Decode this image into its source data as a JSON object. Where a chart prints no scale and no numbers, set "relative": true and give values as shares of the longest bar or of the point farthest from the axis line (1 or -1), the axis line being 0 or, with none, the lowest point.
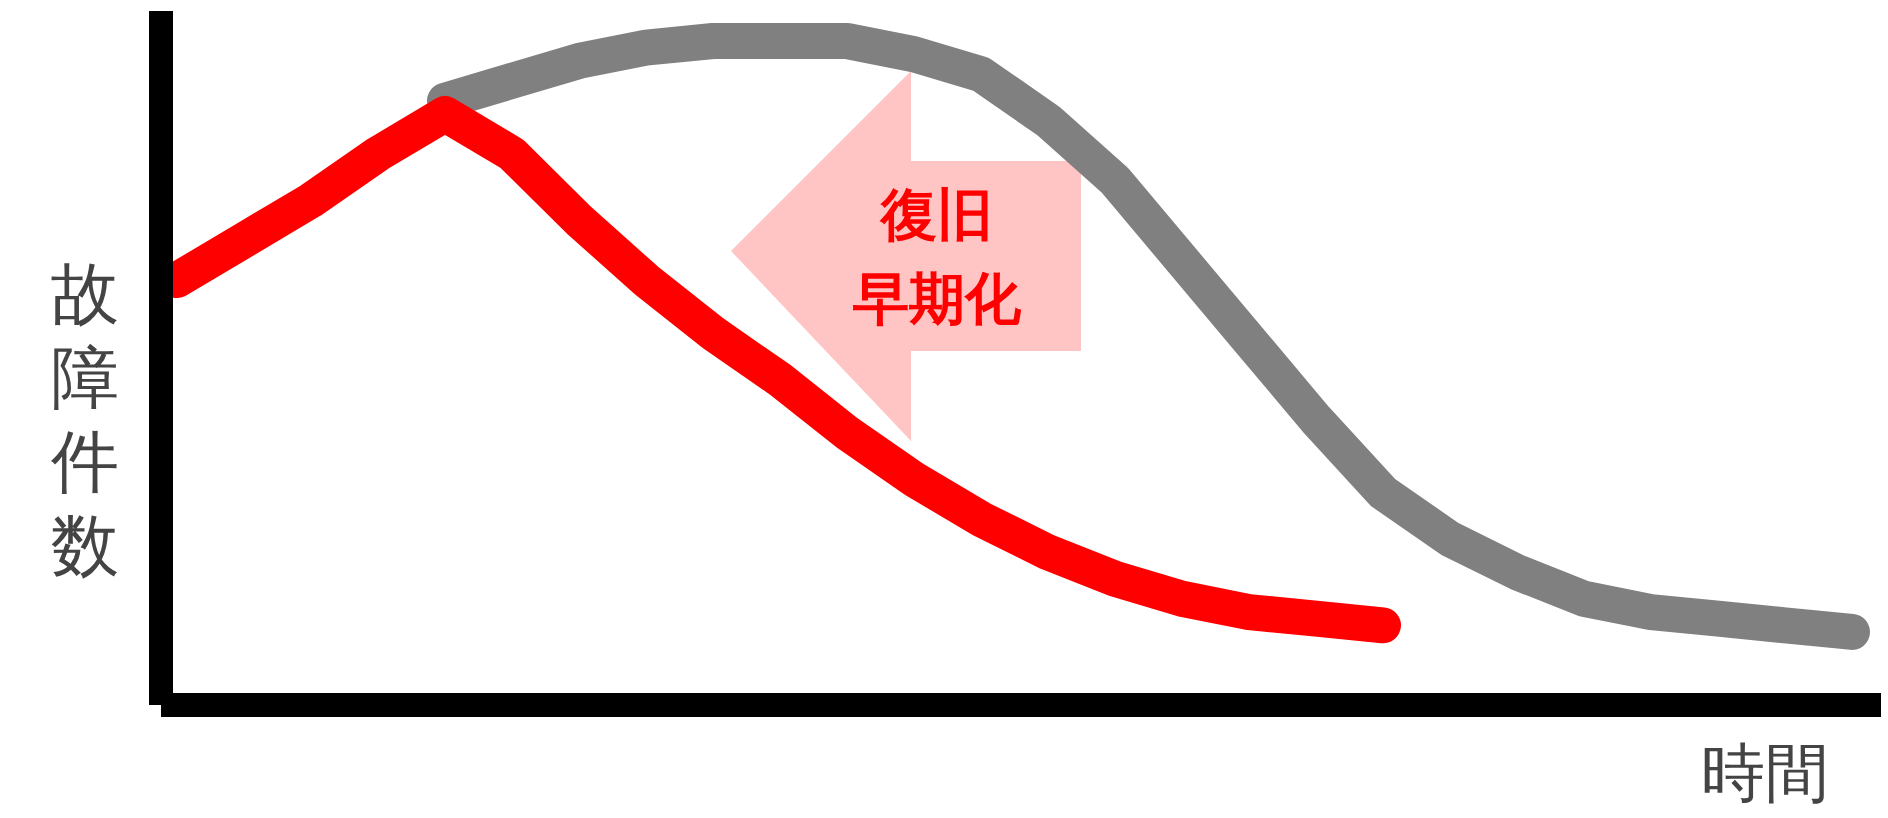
{
  "chart_data": {
    "type": "line",
    "relative": true,
    "ylabel": "故障件数",
    "xlabel": "時間",
    "grid": false,
    "categories": [
      null,
      null,
      null,
      null,
      null,
      null,
      null,
      null,
      null,
      null,
      null,
      null,
      null,
      null,
      null,
      null,
      null,
      null,
      null,
      null,
      null,
      null,
      null,
      null,
      null,
      null
    ],
    "series": [
      {
        "color": "#808080",
        "values": [
          null,
          null,
          null,
          null,
          0.91,
          0.94,
          0.97,
          0.99,
          1.0,
          1.0,
          1.0,
          0.98,
          0.95,
          0.88,
          0.79,
          0.67,
          0.55,
          0.43,
          0.32,
          0.25,
          0.2,
          0.16,
          0.14,
          0.13,
          0.12,
          0.11
        ]
      },
      {
        "color": "#ff0000",
        "values": [
          0.64,
          0.7,
          0.76,
          0.83,
          0.89,
          0.83,
          0.73,
          0.64,
          0.56,
          0.49,
          0.41,
          0.34,
          0.28,
          0.23,
          0.19,
          0.16,
          0.14,
          0.13,
          0.12,
          null,
          null,
          null,
          null,
          null,
          null,
          null
        ]
      }
    ],
    "annotations": [
      "復旧",
      "早期化"
    ]
  }
}
